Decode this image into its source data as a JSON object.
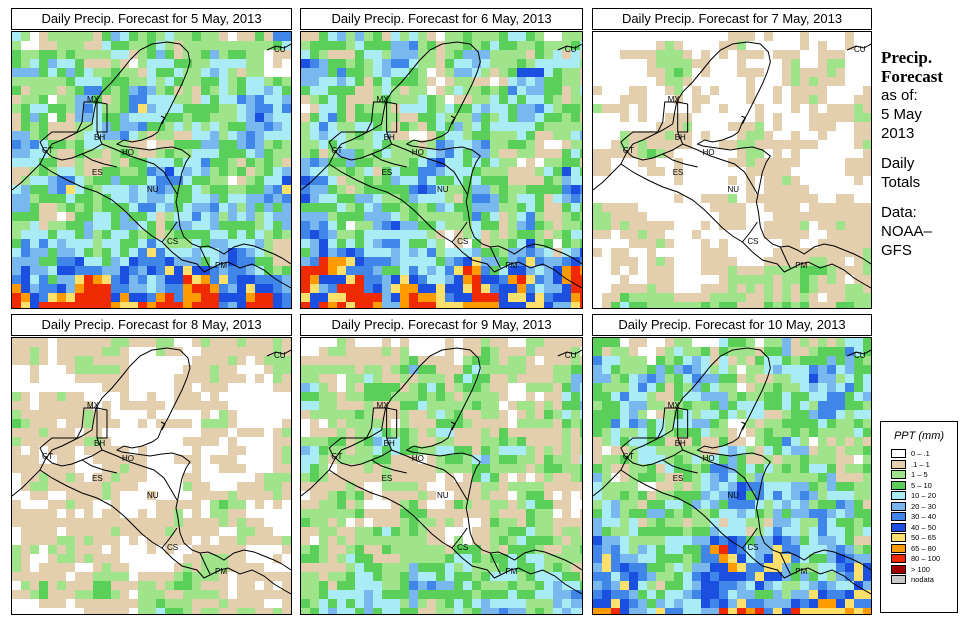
{
  "panels": [
    {
      "title": "Daily Precip. Forecast for  5 May, 2013",
      "seed": 11,
      "wet": 1.25,
      "south": 1.0
    },
    {
      "title": "Daily Precip. Forecast for  6 May, 2013",
      "seed": 23,
      "wet": 1.3,
      "south": 0.85
    },
    {
      "title": "Daily Precip. Forecast for  7 May, 2013",
      "seed": 37,
      "wet": 0.75,
      "south": 0.35
    },
    {
      "title": "Daily Precip. Forecast for  8 May, 2013",
      "seed": 41,
      "wet": 0.8,
      "south": 0.3
    },
    {
      "title": "Daily Precip. Forecast for  9 May, 2013",
      "seed": 53,
      "wet": 1.05,
      "south": 0.4
    },
    {
      "title": "Daily Precip. Forecast for  10 May, 2013",
      "seed": 67,
      "wet": 1.3,
      "south": 0.75
    }
  ],
  "country_labels": [
    "MX",
    "CU",
    "BH",
    "GT",
    "HO",
    "ES",
    "NU",
    "CS",
    "PM"
  ],
  "sidebar": {
    "title_line1": "Precip.",
    "title_line2": "Forecast",
    "asof_label": "as of:",
    "date_line1": "5 May",
    "date_line2": "2013",
    "daily_line1": "Daily",
    "daily_line2": "Totals",
    "data_line1": "Data:",
    "data_line2": "NOAA–",
    "data_line3": "GFS"
  },
  "legend": {
    "title": "PPT (mm)",
    "items": [
      {
        "label": "0 – .1",
        "color": "#ffffff"
      },
      {
        "label": ".1 – 1",
        "color": "#e3cfae"
      },
      {
        "label": "1 – 5",
        "color": "#9fe48a"
      },
      {
        "label": "5 – 10",
        "color": "#5ad05a"
      },
      {
        "label": "10 – 20",
        "color": "#a9ecf6"
      },
      {
        "label": "20 – 30",
        "color": "#79b8ef"
      },
      {
        "label": "30 – 40",
        "color": "#3f86e8"
      },
      {
        "label": "40 – 50",
        "color": "#1a4fe0"
      },
      {
        "label": "50 – 65",
        "color": "#ffe06a"
      },
      {
        "label": "65 – 80",
        "color": "#ff9a00"
      },
      {
        "label": "80 – 100",
        "color": "#f02a00"
      },
      {
        "label": "> 100",
        "color": "#a00000"
      },
      {
        "label": "nodata",
        "color": "#c8c8c8"
      }
    ]
  }
}
